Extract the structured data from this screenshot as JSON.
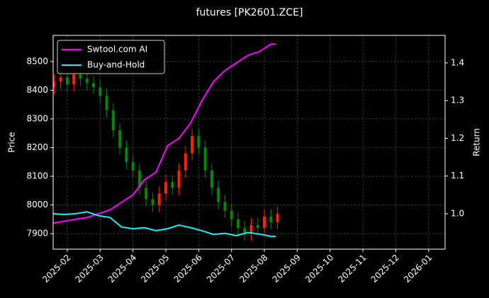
{
  "chart_data": {
    "type": "candlestick",
    "title": "futures [PK2601.ZCE]",
    "ylabel": "Price",
    "y2label": "Return",
    "xlim": [
      1.57,
      13.5
    ],
    "xticks": [
      {
        "value": 2,
        "label": "2025-02"
      },
      {
        "value": 3,
        "label": "2025-03"
      },
      {
        "value": 4,
        "label": "2025-04"
      },
      {
        "value": 5,
        "label": "2025-05"
      },
      {
        "value": 6,
        "label": "2025-06"
      },
      {
        "value": 7,
        "label": "2025-07"
      },
      {
        "value": 8,
        "label": "2025-08"
      },
      {
        "value": 9,
        "label": "2025-09"
      },
      {
        "value": 10,
        "label": "2025-10"
      },
      {
        "value": 11,
        "label": "2025-11"
      },
      {
        "value": 12,
        "label": "2025-12"
      },
      {
        "value": 13,
        "label": "2026-01"
      }
    ],
    "ylim": [
      7846,
      8591
    ],
    "yticks": [
      7900,
      8000,
      8100,
      8200,
      8300,
      8400,
      8500
    ],
    "y2lim": [
      0.906,
      1.473
    ],
    "y2ticks": [
      {
        "value": 1.0,
        "label": "1.0"
      },
      1.1,
      1.2,
      1.3,
      1.4
    ],
    "grid": true,
    "legend": "upper left",
    "up_color": "#ff2200",
    "down_color": "#008800",
    "candles": {
      "x": [
        1.6,
        1.8,
        2.0,
        2.2,
        2.4,
        2.6,
        2.8,
        3.0,
        3.2,
        3.4,
        3.6,
        3.8,
        4.0,
        4.2,
        4.4,
        4.6,
        4.8,
        5.0,
        5.2,
        5.4,
        5.6,
        5.8,
        6.0,
        6.2,
        6.4,
        6.6,
        6.8,
        7.0,
        7.2,
        7.4,
        7.6,
        7.8,
        8.0,
        8.2,
        8.4
      ],
      "open": [
        8410,
        8430,
        8445,
        8420,
        8455,
        8440,
        8425,
        8410,
        8380,
        8330,
        8260,
        8200,
        8150,
        8120,
        8060,
        8020,
        8000,
        8040,
        8080,
        8060,
        8120,
        8180,
        8240,
        8200,
        8120,
        8060,
        8010,
        7980,
        7950,
        7920,
        7900,
        7930,
        7920,
        7960,
        7940
      ],
      "high": [
        8455,
        8470,
        8470,
        8480,
        8480,
        8465,
        8450,
        8435,
        8405,
        8355,
        8285,
        8225,
        8175,
        8145,
        8085,
        8045,
        8065,
        8105,
        8105,
        8145,
        8205,
        8265,
        8265,
        8225,
        8145,
        8085,
        8035,
        8005,
        7975,
        7945,
        7955,
        7955,
        7985,
        7985,
        7995
      ],
      "low": [
        8385,
        8405,
        8395,
        8395,
        8415,
        8400,
        8385,
        8355,
        8305,
        8235,
        8175,
        8125,
        8095,
        8035,
        7995,
        7975,
        7975,
        8015,
        8035,
        8035,
        8095,
        8155,
        8175,
        8095,
        8035,
        7985,
        7955,
        7925,
        7895,
        7875,
        7875,
        7895,
        7895,
        7915,
        7915
      ],
      "close": [
        8430,
        8445,
        8420,
        8455,
        8440,
        8425,
        8410,
        8380,
        8330,
        8260,
        8200,
        8150,
        8120,
        8060,
        8020,
        8000,
        8040,
        8080,
        8060,
        8120,
        8180,
        8240,
        8200,
        8120,
        8060,
        8010,
        7980,
        7950,
        7920,
        7900,
        7930,
        7920,
        7960,
        7940,
        7970
      ]
    },
    "x": [
      1.57,
      1.9,
      2.25,
      2.6,
      2.95,
      3.3,
      3.65,
      4.0,
      4.35,
      4.7,
      5.05,
      5.4,
      5.75,
      6.1,
      6.45,
      6.8,
      7.15,
      7.5,
      7.85,
      8.2,
      8.35
    ],
    "series": [
      {
        "name": "Swtool.com AI",
        "color": "#ff00ff",
        "axis": "y2",
        "values": [
          0.975,
          0.98,
          0.985,
          0.99,
          1.0,
          1.01,
          1.03,
          1.05,
          1.09,
          1.11,
          1.18,
          1.2,
          1.24,
          1.3,
          1.35,
          1.38,
          1.4,
          1.42,
          1.43,
          1.45,
          1.45
        ]
      },
      {
        "name": "Buy-and-Hold",
        "color": "#22eeee",
        "axis": "y2",
        "values": [
          1.0,
          0.998,
          1.0,
          1.005,
          0.995,
          0.99,
          0.965,
          0.96,
          0.963,
          0.955,
          0.96,
          0.97,
          0.963,
          0.955,
          0.945,
          0.948,
          0.942,
          0.95,
          0.946,
          0.94,
          0.94
        ]
      }
    ]
  }
}
